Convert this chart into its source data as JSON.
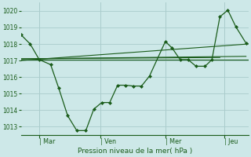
{
  "bg_color": "#cde8e8",
  "grid_color": "#aacccc",
  "line_color": "#1a5c1a",
  "marker_color": "#1a5c1a",
  "xlabel": "Pression niveau de la mer( hPa )",
  "ylim": [
    1012.5,
    1020.5
  ],
  "yticks": [
    1013,
    1014,
    1015,
    1016,
    1017,
    1018,
    1019,
    1020
  ],
  "xtick_labels": [
    "| Mar",
    "| Ven",
    "| Mer",
    "| Jeu"
  ],
  "xtick_positions": [
    0.08,
    0.35,
    0.635,
    0.895
  ],
  "main_line_x": [
    0.0,
    0.04,
    0.08,
    0.13,
    0.165,
    0.205,
    0.245,
    0.285,
    0.32,
    0.355,
    0.39,
    0.425,
    0.46,
    0.495,
    0.53,
    0.565,
    0.635,
    0.665,
    0.7,
    0.735,
    0.77,
    0.81,
    0.84,
    0.875,
    0.91,
    0.945,
    0.99
  ],
  "main_line_y": [
    1018.55,
    1018.0,
    1017.05,
    1016.75,
    1015.35,
    1013.65,
    1012.75,
    1012.75,
    1014.05,
    1014.45,
    1014.45,
    1015.5,
    1015.5,
    1015.45,
    1015.45,
    1016.05,
    1018.15,
    1017.75,
    1017.05,
    1017.05,
    1016.65,
    1016.65,
    1017.05,
    1019.65,
    1020.05,
    1019.05,
    1018.05
  ],
  "trend_lines": [
    {
      "x": [
        0.0,
        1.0
      ],
      "y": [
        1017.05,
        1017.05
      ]
    },
    {
      "x": [
        0.0,
        1.0
      ],
      "y": [
        1017.0,
        1018.0
      ]
    },
    {
      "x": [
        0.0,
        0.99
      ],
      "y": [
        1017.1,
        1017.25
      ]
    },
    {
      "x": [
        0.0,
        0.875
      ],
      "y": [
        1017.1,
        1017.18
      ]
    }
  ],
  "vline_positions": [
    0.08,
    0.35,
    0.635,
    0.895
  ],
  "bottom_spine_color": "#1a5c1a",
  "figsize": [
    3.2,
    2.0
  ],
  "dpi": 100
}
